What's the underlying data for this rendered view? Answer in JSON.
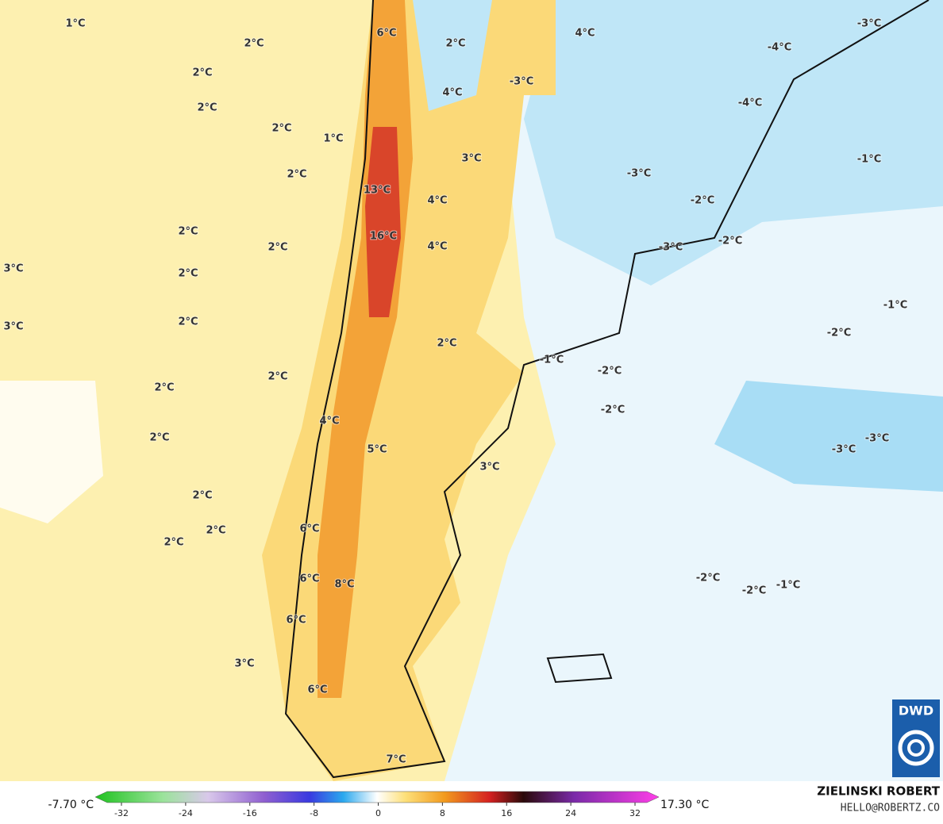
{
  "map": {
    "labels": [
      "1°C",
      "2°C",
      "6°C",
      "2°C",
      "4°C",
      "-3°C",
      "-4°C",
      "2°C",
      "-3°C",
      "2°C",
      "4°C",
      "-4°C",
      "2°C",
      "1°C",
      "3°C",
      "-1°C",
      "2°C",
      "-3°C",
      "13°C",
      "4°C",
      "-2°C",
      "2°C",
      "16°C",
      "-2°C",
      "2°C",
      "4°C",
      "-3°C",
      "3°C",
      "2°C",
      "-1°C",
      "3°C",
      "2°C",
      "2°C",
      "-2°C",
      "-1°C",
      "-2°C",
      "2°C",
      "2°C",
      "-2°C",
      "4°C",
      "2°C",
      "5°C",
      "-3°C",
      "-3°C",
      "3°C",
      "2°C",
      "6°C",
      "2°C",
      "2°C",
      "6°C",
      "8°C",
      "-2°C",
      "-2°C",
      "-1°C",
      "6°C",
      "3°C",
      "6°C",
      "7°C"
    ]
  },
  "colorbar": {
    "min_label": "-7.70 °C",
    "max_label": "17.30 °C",
    "ticks": [
      -32,
      -24,
      -16,
      -8,
      0,
      8,
      16,
      24,
      32
    ]
  },
  "credit": {
    "author": "ZIELINSKI ROBERT",
    "contact": "HELLO@ROBERTZ.CO",
    "logo": "DWD"
  }
}
